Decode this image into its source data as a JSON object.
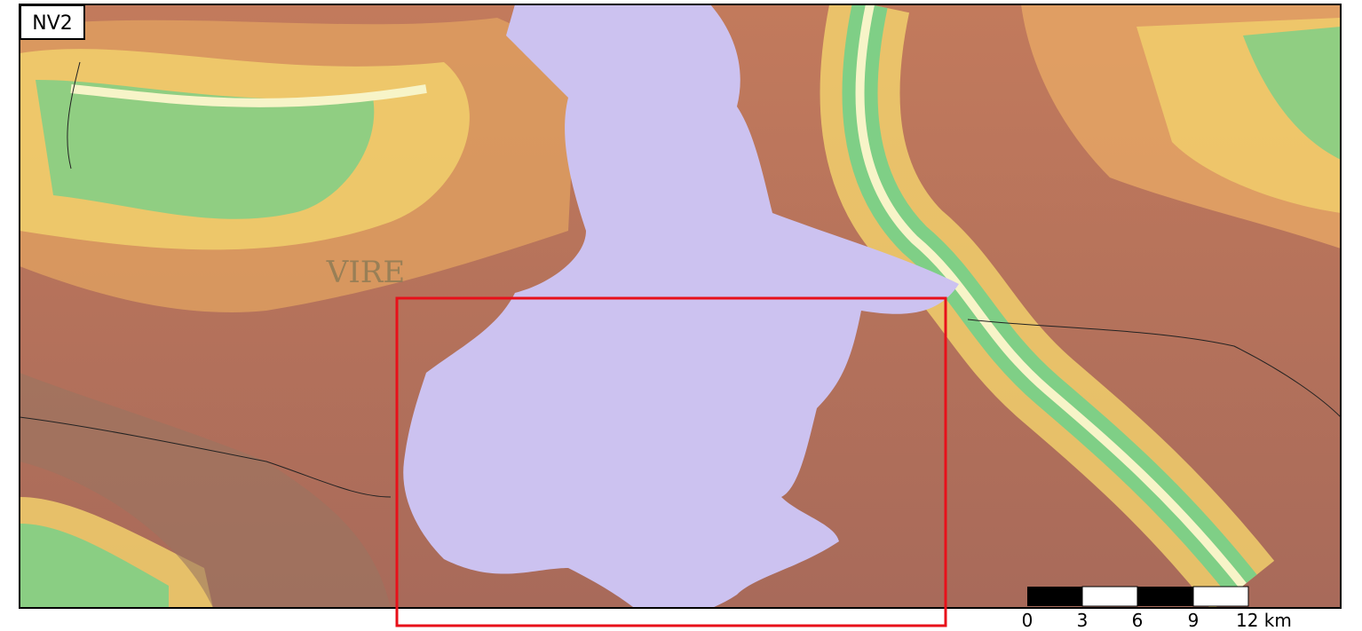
{
  "map_label": "NV2",
  "place_label": "VIRE",
  "scale_bar": {
    "labels": [
      "0",
      "3",
      "6",
      "9",
      "12 km"
    ]
  }
}
